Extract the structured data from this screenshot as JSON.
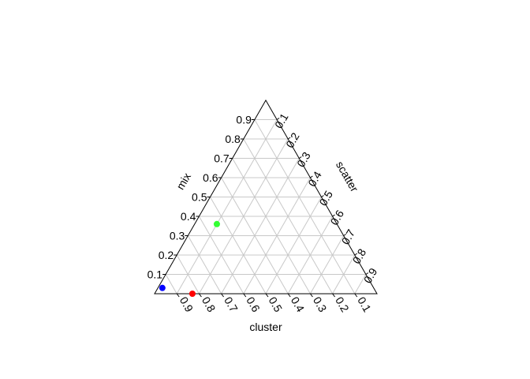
{
  "chart_data": {
    "type": "scatter",
    "subtype": "ternary",
    "title": "",
    "axes": {
      "bottom": {
        "label": "cluster",
        "ticks": [
          "0.9",
          "0.8",
          "0.7",
          "0.6",
          "0.5",
          "0.4",
          "0.3",
          "0.2",
          "0.1"
        ]
      },
      "left": {
        "label": "mix",
        "ticks": [
          "0.1",
          "0.2",
          "0.3",
          "0.4",
          "0.5",
          "0.6",
          "0.7",
          "0.8",
          "0.9"
        ]
      },
      "right": {
        "label": "scatter",
        "ticks": [
          "0.1",
          "0.2",
          "0.3",
          "0.4",
          "0.5",
          "0.6",
          "0.7",
          "0.8",
          "0.9"
        ]
      }
    },
    "grid": true,
    "grid_step": 0.1,
    "points": [
      {
        "cluster": 0.95,
        "mix": 0.03,
        "scatter": 0.02,
        "color": "#0000FF"
      },
      {
        "cluster": 0.83,
        "mix": 0.0,
        "scatter": 0.17,
        "color": "#FF0000"
      },
      {
        "cluster": 0.54,
        "mix": 0.36,
        "scatter": 0.1,
        "color": "#33FF33"
      }
    ]
  }
}
